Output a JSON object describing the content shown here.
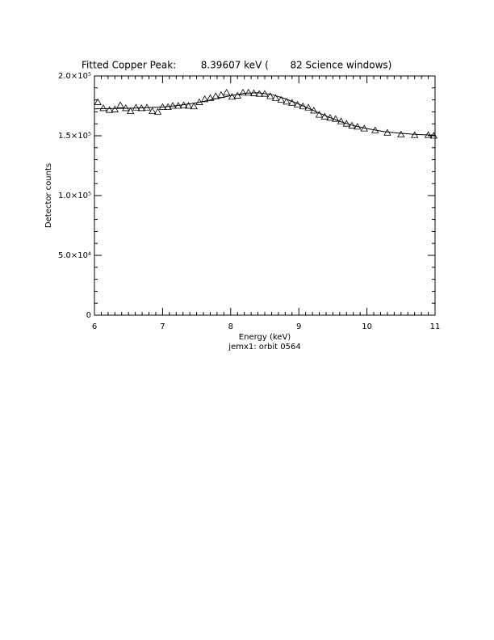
{
  "chart_data": {
    "type": "scatter",
    "title": "Fitted Copper Peak:        8.39607 keV (       82 Science windows)",
    "xlabel": "Energy (keV)",
    "ylabel": "Detector counts",
    "subtitle": "jemx1: orbit 0564",
    "xlim": [
      6,
      11
    ],
    "xticks": [
      6,
      7,
      8,
      9,
      10,
      11
    ],
    "xminor": 10,
    "ylim": [
      0,
      200000
    ],
    "yminor": 5,
    "yticks": [
      {
        "value": 0,
        "label": "0"
      },
      {
        "value": 50000,
        "label": "5.0×10⁴"
      },
      {
        "value": 100000,
        "label": "1.0×10⁵"
      },
      {
        "value": 150000,
        "label": "1.5×10⁵"
      },
      {
        "value": 200000,
        "label": "2.0×10⁵"
      }
    ],
    "color": "#000000",
    "x": [
      6.05,
      6.13,
      6.22,
      6.3,
      6.38,
      6.46,
      6.53,
      6.61,
      6.69,
      6.77,
      6.85,
      6.93,
      7.0,
      7.08,
      7.15,
      7.23,
      7.31,
      7.38,
      7.46,
      7.54,
      7.62,
      7.7,
      7.78,
      7.86,
      7.94,
      8.02,
      8.1,
      8.18,
      8.26,
      8.34,
      8.42,
      8.5,
      8.58,
      8.66,
      8.74,
      8.82,
      8.9,
      8.98,
      9.06,
      9.14,
      9.22,
      9.3,
      9.38,
      9.46,
      9.54,
      9.62,
      9.7,
      9.78,
      9.86,
      9.96,
      10.12,
      10.3,
      10.5,
      10.7,
      10.9,
      10.98
    ],
    "values": [
      178000,
      173000,
      171500,
      172000,
      175500,
      173000,
      170500,
      173500,
      173000,
      173500,
      170500,
      170000,
      174000,
      174000,
      175000,
      175000,
      175500,
      175000,
      174500,
      178000,
      180500,
      181500,
      183000,
      184000,
      186000,
      182500,
      183500,
      186000,
      186000,
      185500,
      185000,
      185000,
      183000,
      181500,
      180000,
      178500,
      177500,
      176000,
      174500,
      173500,
      171000,
      167500,
      166000,
      165000,
      164000,
      162000,
      160000,
      158500,
      157500,
      156000,
      154500,
      152500,
      151000,
      150500,
      150500,
      150000
    ],
    "fit": {
      "x": [
        6,
        6.5,
        7,
        7.25,
        7.5,
        7.75,
        8,
        8.2,
        8.4,
        8.6,
        8.8,
        9,
        9.2,
        9.4,
        9.6,
        9.8,
        10,
        10.25,
        10.5,
        10.75,
        11
      ],
      "values": [
        172500,
        173000,
        174000,
        175500,
        177500,
        180500,
        183500,
        185500,
        186000,
        184500,
        181000,
        176500,
        171500,
        166500,
        162000,
        158500,
        156000,
        153500,
        152000,
        151000,
        150500
      ]
    }
  }
}
